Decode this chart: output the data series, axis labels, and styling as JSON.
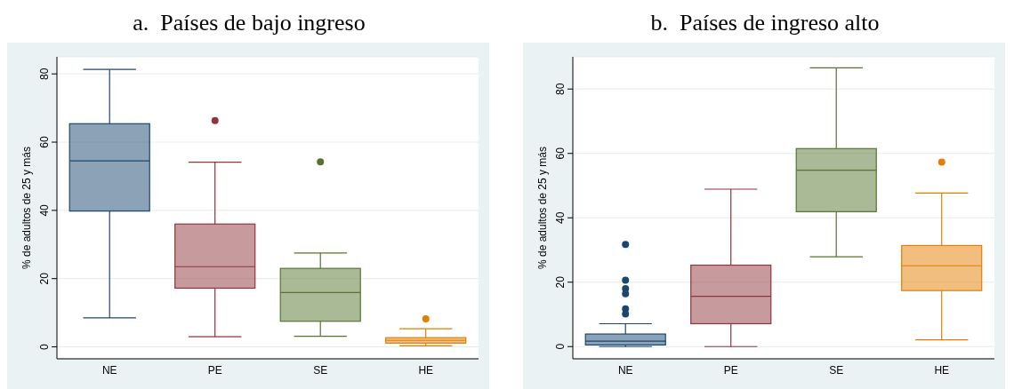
{
  "chart_data": [
    {
      "type": "box",
      "title": "a.  Países de bajo ingreso",
      "ylabel": "% de adultos de 25 y más",
      "categories": [
        "NE",
        "PE",
        "SE",
        "HE"
      ],
      "colors": [
        "#1a476f",
        "#90353b",
        "#55752f",
        "#e37e00"
      ],
      "boxes": [
        {
          "low": 8.5,
          "q1": 39.8,
          "median": 54.5,
          "q3": 65.4,
          "high": 81.3
        },
        {
          "low": 3.0,
          "q1": 17.2,
          "median": 23.5,
          "q3": 36.0,
          "high": 54.1,
          "outliers": [
            66.3
          ]
        },
        {
          "low": 3.1,
          "q1": 7.5,
          "median": 15.9,
          "q3": 23.0,
          "high": 27.5,
          "outliers": [
            54.2
          ]
        },
        {
          "low": 0.3,
          "q1": 1.1,
          "median": 1.9,
          "q3": 2.7,
          "high": 5.3,
          "outliers": [
            8.2
          ]
        }
      ],
      "ylim": [
        -3.5,
        85
      ],
      "yticks": [
        0,
        20,
        40,
        60,
        80
      ],
      "grid": "y"
    },
    {
      "type": "box",
      "title": "b.  Países de ingreso alto",
      "ylabel": "% de adultos de 25 y más",
      "categories": [
        "NE",
        "PE",
        "SE",
        "HE"
      ],
      "colors": [
        "#1a476f",
        "#90353b",
        "#55752f",
        "#e37e00"
      ],
      "boxes": [
        {
          "low": 0,
          "q1": 0.5,
          "median": 1.7,
          "q3": 3.9,
          "high": 7.1,
          "outliers": [
            31.7,
            20.6,
            18.0,
            16.4,
            11.7,
            10.1
          ]
        },
        {
          "low": 0,
          "q1": 7.1,
          "median": 15.6,
          "q3": 25.3,
          "high": 48.9
        },
        {
          "low": 27.9,
          "q1": 41.9,
          "median": 54.8,
          "q3": 61.5,
          "high": 86.6
        },
        {
          "low": 2.1,
          "q1": 17.4,
          "median": 25.1,
          "q3": 31.4,
          "high": 47.7,
          "outliers": [
            57.3
          ]
        }
      ],
      "ylim": [
        -3.8,
        90
      ],
      "yticks": [
        0,
        20,
        40,
        60,
        80
      ],
      "grid": "y"
    }
  ]
}
